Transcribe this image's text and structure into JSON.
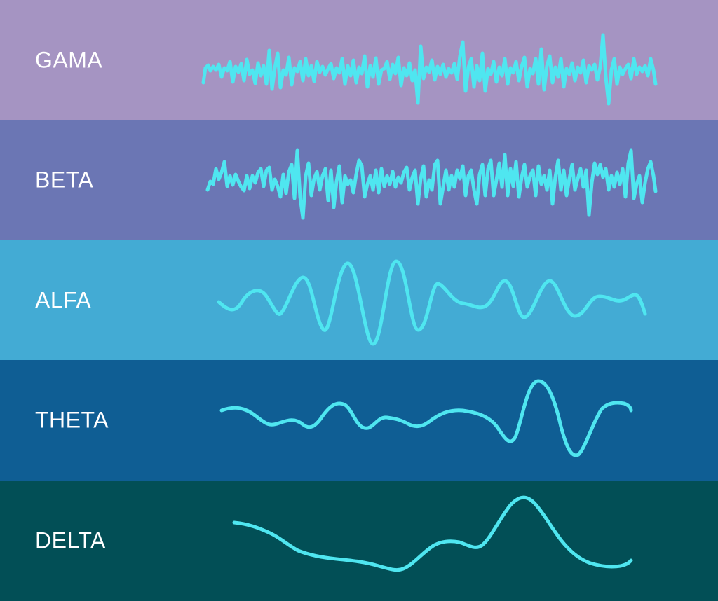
{
  "wave_color": "#4fe6f0",
  "bands": [
    {
      "label": "GAMA",
      "color": "#a594c2"
    },
    {
      "label": "BETA",
      "color": "#6b76b4"
    },
    {
      "label": "ALFA",
      "color": "#43abd4"
    },
    {
      "label": "THETA",
      "color": "#0f5e94"
    },
    {
      "label": "DELTA",
      "color": "#024f56"
    }
  ]
}
